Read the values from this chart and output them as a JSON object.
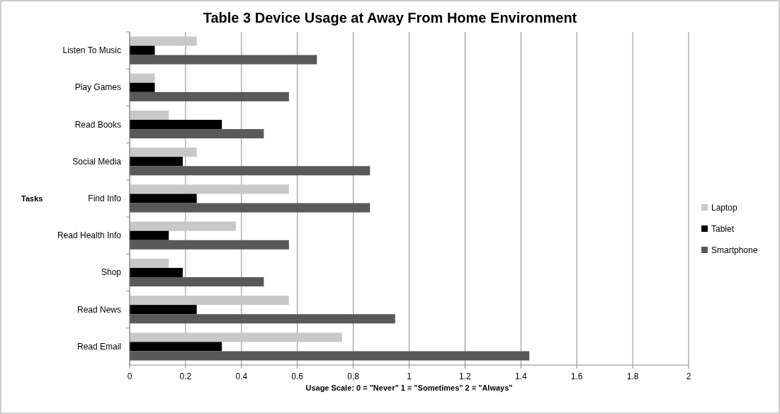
{
  "chart_data": {
    "type": "bar",
    "orientation": "horizontal",
    "title": "Table 3 Device Usage at Away From Home Environment",
    "xlabel": "Usage Scale: 0 = \"Never\"  1 = \"Sometimes\"  2 = \"Always\"",
    "ylabel": "Tasks",
    "categories": [
      "Listen To Music",
      "Play Games",
      "Read Books",
      "Social Media",
      "Find Info",
      "Read Health Info",
      "Shop",
      "Read News",
      "Read Email"
    ],
    "series": [
      {
        "name": "Laptop",
        "color": "#c8c8c8",
        "values": [
          0.24,
          0.09,
          0.14,
          0.24,
          0.57,
          0.38,
          0.14,
          0.57,
          0.76
        ]
      },
      {
        "name": "Tablet",
        "color": "#000000",
        "values": [
          0.09,
          0.09,
          0.33,
          0.19,
          0.24,
          0.14,
          0.19,
          0.24,
          0.33
        ]
      },
      {
        "name": "Smartphone",
        "color": "#595959",
        "values": [
          0.67,
          0.57,
          0.48,
          0.86,
          0.86,
          0.57,
          0.48,
          0.95,
          1.43
        ]
      }
    ],
    "xlim": [
      0,
      2
    ],
    "xticks": [
      0,
      0.2,
      0.4,
      0.6,
      0.8,
      1,
      1.2,
      1.4,
      1.6,
      1.8,
      2
    ],
    "grid": "x",
    "legend": "right"
  }
}
